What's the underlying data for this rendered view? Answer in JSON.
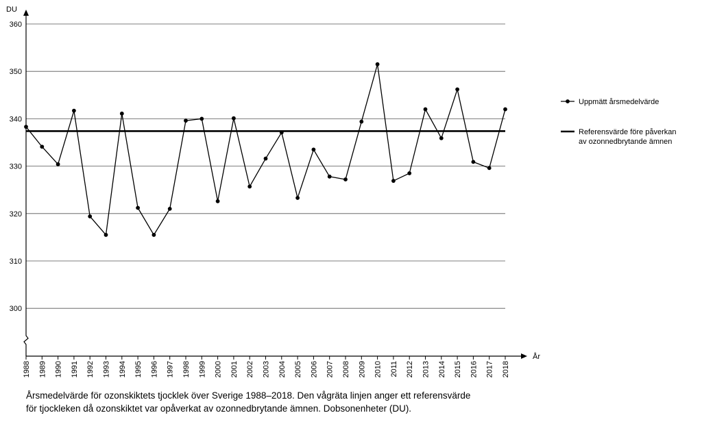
{
  "chart_data": {
    "type": "line",
    "y_axis_label": "DU",
    "x_axis_label": "År",
    "ylim": [
      290,
      360
    ],
    "y_ticks": [
      300,
      310,
      320,
      330,
      340,
      350,
      360
    ],
    "y_axis_break": true,
    "grid": "horizontal",
    "legend_position": "right",
    "x": [
      1988,
      1989,
      1990,
      1991,
      1992,
      1993,
      1994,
      1995,
      1996,
      1997,
      1998,
      1999,
      2000,
      2001,
      2002,
      2003,
      2004,
      2005,
      2006,
      2007,
      2008,
      2009,
      2010,
      2011,
      2012,
      2013,
      2014,
      2015,
      2016,
      2017,
      2018
    ],
    "x_tick_labels": [
      "1988",
      "1989",
      "1990",
      "1991",
      "1992",
      "1993",
      "1994",
      "1995",
      "1996",
      "1997",
      "1998",
      "1999",
      "2000",
      "2001",
      "2002",
      "2003",
      "2004",
      "2005",
      "2006",
      "2007",
      "2008",
      "2009",
      "2010",
      "2011",
      "2012",
      "2013",
      "2014",
      "2015",
      "2016",
      "2017",
      "2018"
    ],
    "series": [
      {
        "name": "Uppmätt årsmedelvärde",
        "color": "#000000",
        "marker": "circle",
        "values": [
          338.3,
          334.1,
          330.4,
          341.7,
          319.4,
          315.5,
          341.1,
          321.2,
          315.5,
          321.0,
          339.6,
          340.0,
          322.6,
          340.1,
          325.7,
          331.6,
          337.1,
          323.3,
          333.5,
          327.8,
          327.2,
          339.4,
          351.5,
          326.9,
          328.5,
          342.0,
          335.9,
          346.2,
          330.9,
          329.6,
          342.0
        ]
      },
      {
        "name": "Referensvärde före påverkan av ozonnedbrytande ämnen",
        "name_lines": [
          "Referensvärde före påverkan",
          "av ozonnedbrytande ämnen"
        ],
        "color": "#000000",
        "type": "reference_line",
        "value": 337.4
      }
    ]
  },
  "caption": {
    "line1": "Årsmedelvärde för ozonskiktets tjocklek över Sverige 1988–2018. Den vågräta linjen anger ett referensvärde",
    "line2": "för tjockleken då ozonskiktet var opåverkat av ozonnedbrytande ämnen. Dobsonenheter (DU)."
  }
}
